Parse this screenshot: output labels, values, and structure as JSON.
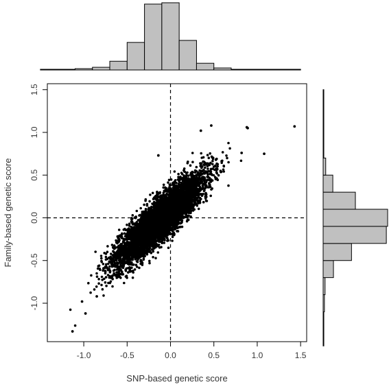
{
  "chart_data": {
    "type": "scatter",
    "title": "",
    "xlabel": "SNP-based genetic score",
    "ylabel": "Family-based genetic score",
    "xlim": [
      -1.42,
      1.57
    ],
    "ylim": [
      -1.45,
      1.57
    ],
    "xticks": [
      -1.0,
      -0.5,
      0.0,
      0.5,
      1.0,
      1.5
    ],
    "xtick_labels": [
      "-1.0",
      "-0.5",
      "0.0",
      "0.5",
      "1.0",
      "1.5"
    ],
    "yticks": [
      -1.0,
      -0.5,
      0.0,
      0.5,
      1.0,
      1.5
    ],
    "ytick_labels": [
      "-1.0",
      "-0.5",
      "0.0",
      "0.5",
      "1.0",
      "1.5"
    ],
    "grid": false,
    "reference_lines": {
      "x": 0.0,
      "y": 0.0,
      "style": "dashed"
    },
    "point_color": "#000000",
    "cloud": {
      "n_points": 6000,
      "x_mean": -0.12,
      "x_sd": 0.25,
      "y_mean": -0.02,
      "y_sd": 0.26,
      "correlation": 0.88
    },
    "outliers": [
      {
        "x": 1.43,
        "y": 1.07
      },
      {
        "x": 0.88,
        "y": 1.06
      },
      {
        "x": 0.89,
        "y": 1.05
      },
      {
        "x": 0.47,
        "y": 1.08
      },
      {
        "x": 0.35,
        "y": 1.02
      },
      {
        "x": 1.08,
        "y": 0.75
      },
      {
        "x": -0.14,
        "y": 0.73
      },
      {
        "x": 0.82,
        "y": 0.76
      },
      {
        "x": -1.13,
        "y": -1.33
      },
      {
        "x": -0.98,
        "y": -1.12
      },
      {
        "x": -1.02,
        "y": -0.98
      },
      {
        "x": -0.85,
        "y": -0.92
      }
    ],
    "x_histogram": {
      "breaks": [
        -1.5,
        -1.3,
        -1.1,
        -0.9,
        -0.7,
        -0.5,
        -0.3,
        -0.1,
        0.1,
        0.3,
        0.5,
        0.7,
        0.9,
        1.1,
        1.3,
        1.5
      ],
      "relative_heights": [
        0.01,
        0.01,
        0.02,
        0.04,
        0.13,
        0.41,
        0.98,
        1.0,
        0.44,
        0.1,
        0.03,
        0.01,
        0.01,
        0.01,
        0.01
      ]
    },
    "y_histogram": {
      "breaks": [
        -1.5,
        -1.3,
        -1.1,
        -0.9,
        -0.7,
        -0.5,
        -0.3,
        -0.1,
        0.1,
        0.3,
        0.5,
        0.7,
        0.9,
        1.1,
        1.3,
        1.5
      ],
      "relative_heights": [
        0.0,
        0.01,
        0.02,
        0.03,
        0.16,
        0.44,
        0.98,
        1.0,
        0.5,
        0.15,
        0.04,
        0.01,
        0.01,
        0.01,
        0.01
      ]
    }
  }
}
